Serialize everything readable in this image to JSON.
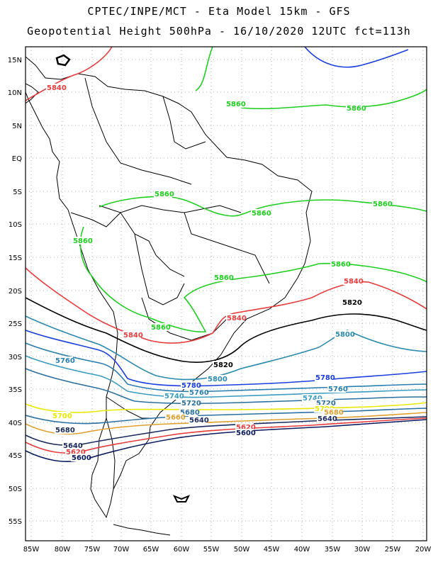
{
  "header": {
    "title_line1": "CPTEC/INPE/MCT  -  Eta Model 15km - GFS",
    "title_line2": "Geopotential Height 500hPa - 16/10/2020 12UTC fct=113h"
  },
  "map": {
    "lat_labels": [
      "15N",
      "10N",
      "5N",
      "EQ",
      "5S",
      "10S",
      "15S",
      "20S",
      "25S",
      "30S",
      "35S",
      "40S",
      "45S",
      "50S",
      "55S"
    ],
    "lon_labels": [
      "85W",
      "80W",
      "75W",
      "70W",
      "65W",
      "60W",
      "55W",
      "50W",
      "45W",
      "40W",
      "35W",
      "30W",
      "25W",
      "20W"
    ],
    "grid": "dotted",
    "colors": {
      "c5860": "#1fcf1f",
      "c5840": "#e83c3c",
      "c5820": "#000000",
      "c5800": "#2a8ab0",
      "c5780": "#1a3fe0",
      "c5760": "#2a7fb0",
      "c5740": "#3a9cc0",
      "c5720": "#2a70a0",
      "c5700": "#e8e800",
      "c5680": "#e0a030",
      "c5660": "#e0a030",
      "c5640": "#1a2a60",
      "c5620": "#e83c3c",
      "c5600": "#0a1a60",
      "coast": "#000000"
    },
    "contour_labels": [
      {
        "text": "5840",
        "color": "#e83c3c"
      },
      {
        "text": "5860",
        "color": "#1fcf1f"
      },
      {
        "text": "5860",
        "color": "#1fcf1f"
      },
      {
        "text": "5860",
        "color": "#1fcf1f"
      },
      {
        "text": "5860",
        "color": "#1fcf1f"
      },
      {
        "text": "5860",
        "color": "#1fcf1f"
      },
      {
        "text": "5860",
        "color": "#1fcf1f"
      },
      {
        "text": "5860",
        "color": "#1fcf1f"
      },
      {
        "text": "5860",
        "color": "#1fcf1f"
      },
      {
        "text": "5860",
        "color": "#1fcf1f"
      },
      {
        "text": "5840",
        "color": "#e83c3c"
      },
      {
        "text": "5820",
        "color": "#000000"
      },
      {
        "text": "5840",
        "color": "#e83c3c"
      },
      {
        "text": "5840",
        "color": "#e83c3c"
      },
      {
        "text": "5800",
        "color": "#2a8ab0"
      },
      {
        "text": "5760",
        "color": "#2a7fb0"
      },
      {
        "text": "5820",
        "color": "#000000"
      },
      {
        "text": "5800",
        "color": "#2a8ab0"
      },
      {
        "text": "5780",
        "color": "#1a3fe0"
      },
      {
        "text": "5780",
        "color": "#1a3fe0"
      },
      {
        "text": "5760",
        "color": "#2a7fb0"
      },
      {
        "text": "5760",
        "color": "#2a7fb0"
      },
      {
        "text": "5740",
        "color": "#3a9cc0"
      },
      {
        "text": "5740",
        "color": "#3a9cc0"
      },
      {
        "text": "5720",
        "color": "#2a70a0"
      },
      {
        "text": "5720",
        "color": "#2a70a0"
      },
      {
        "text": "5700",
        "color": "#e8e800"
      },
      {
        "text": "5700",
        "color": "#e8e800"
      },
      {
        "text": "5680",
        "color": "#2a70a0"
      },
      {
        "text": "5680",
        "color": "#e0a030"
      },
      {
        "text": "5680",
        "color": "#1a2a60"
      },
      {
        "text": "5660",
        "color": "#e0a030"
      },
      {
        "text": "5640",
        "color": "#1a2a60"
      },
      {
        "text": "5640",
        "color": "#1a2a60"
      },
      {
        "text": "5640",
        "color": "#1a2a60"
      },
      {
        "text": "5620",
        "color": "#e83c3c"
      },
      {
        "text": "5620",
        "color": "#e83c3c"
      },
      {
        "text": "5600",
        "color": "#0a1a60"
      },
      {
        "text": "5600",
        "color": "#0a1a60"
      }
    ]
  }
}
